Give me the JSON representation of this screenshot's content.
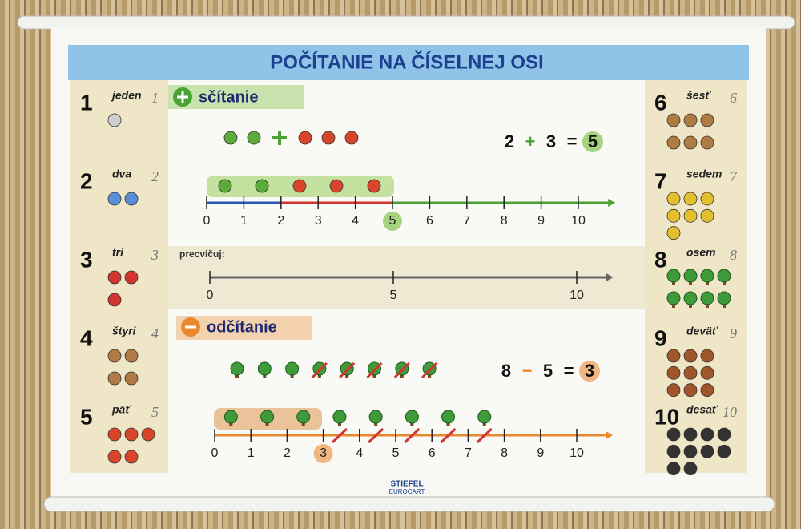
{
  "title": "POČÍTANIE NA ČÍSELNEJ OSI",
  "numbers_left": [
    {
      "n": 1,
      "word": "jeden"
    },
    {
      "n": 2,
      "word": "dva"
    },
    {
      "n": 3,
      "word": "tri"
    },
    {
      "n": 4,
      "word": "štyri"
    },
    {
      "n": 5,
      "word": "päť"
    }
  ],
  "numbers_right": [
    {
      "n": 6,
      "word": "šesť"
    },
    {
      "n": 7,
      "word": "sedem"
    },
    {
      "n": 8,
      "word": "osem"
    },
    {
      "n": 9,
      "word": "deväť"
    },
    {
      "n": 10,
      "word": "desať"
    }
  ],
  "addition": {
    "label": "sčítanie",
    "equation": {
      "a": 2,
      "op": "+",
      "b": 3,
      "eq": "=",
      "result": 5
    },
    "axis": [
      0,
      1,
      2,
      3,
      4,
      5,
      6,
      7,
      8,
      9,
      10
    ]
  },
  "practice": {
    "label": "precvičuj:",
    "axis": [
      0,
      5,
      10
    ]
  },
  "subtraction": {
    "label": "odčítanie",
    "equation": {
      "a": 8,
      "op": "−",
      "b": 5,
      "eq": "=",
      "result": 3
    },
    "axis": [
      0,
      1,
      2,
      3,
      4,
      5,
      6,
      7,
      8,
      9,
      10
    ]
  },
  "footer": {
    "brand": "STIEFEL",
    "sub": "EUROCART"
  }
}
